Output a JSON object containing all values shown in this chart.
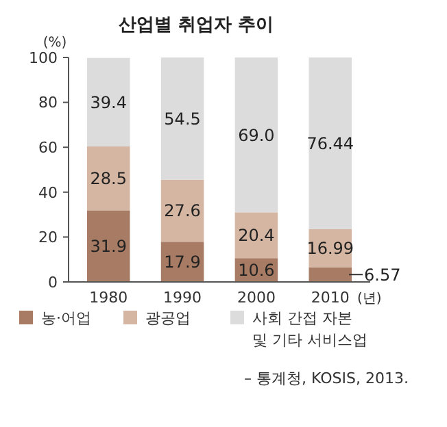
{
  "chart_data": {
    "type": "bar",
    "stacked": true,
    "title": "산업별 취업자 추이",
    "ylabel": "(%)",
    "xlabel": "(년)",
    "categories": [
      "1980",
      "1990",
      "2000",
      "2010"
    ],
    "series": [
      {
        "name": "농·어업",
        "color": "#a87c64",
        "values": [
          31.9,
          17.9,
          10.6,
          6.57
        ],
        "value_labels": [
          "31.9",
          "17.9",
          "10.6",
          "6.57"
        ]
      },
      {
        "name": "광공업",
        "color": "#d4b6a2",
        "values": [
          28.5,
          27.6,
          20.4,
          16.99
        ],
        "value_labels": [
          "28.5",
          "27.6",
          "20.4",
          "16.99"
        ]
      },
      {
        "name": "사회 간접 자본 및 기타 서비스업",
        "color": "#dcdcdc",
        "values": [
          39.4,
          54.5,
          69.0,
          76.44
        ],
        "value_labels": [
          "39.4",
          "54.5",
          "69.0",
          "76.44"
        ]
      }
    ],
    "ylim": [
      0,
      100
    ],
    "yticks": [
      0,
      20,
      40,
      60,
      80,
      100
    ],
    "legend": "bottom",
    "annotations": [
      "– 통계청, KOSIS, 2013."
    ]
  }
}
